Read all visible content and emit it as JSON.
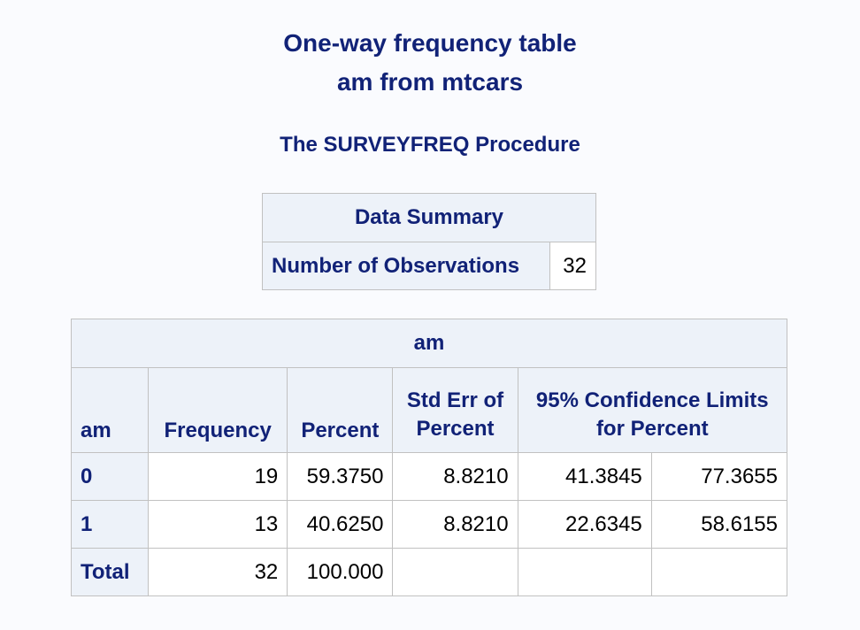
{
  "titles": {
    "line1": "One-way frequency table",
    "line2": "am from mtcars"
  },
  "procedure": "The SURVEYFREQ Procedure",
  "data_summary": {
    "header": "Data Summary",
    "row_label": "Number of Observations",
    "row_value": "32"
  },
  "freq_table": {
    "spanning_header": "am",
    "columns": {
      "am": "am",
      "frequency": "Frequency",
      "percent": "Percent",
      "stderr_line1": "Std Err of",
      "stderr_line2": "Percent",
      "cl_line1": "95% Confidence Limits",
      "cl_line2": "for Percent"
    },
    "rows": [
      {
        "am": "0",
        "frequency": "19",
        "percent": "59.3750",
        "stderr": "8.8210",
        "lower": "41.3845",
        "upper": "77.3655"
      },
      {
        "am": "1",
        "frequency": "13",
        "percent": "40.6250",
        "stderr": "8.8210",
        "lower": "22.6345",
        "upper": "58.6155"
      },
      {
        "am": "Total",
        "frequency": "32",
        "percent": "100.000",
        "stderr": "",
        "lower": "",
        "upper": ""
      }
    ]
  },
  "colors": {
    "header_text": "#112277",
    "header_bg": "#edf2f9",
    "page_bg": "#fafbfe",
    "border": "#c1c1c1"
  }
}
